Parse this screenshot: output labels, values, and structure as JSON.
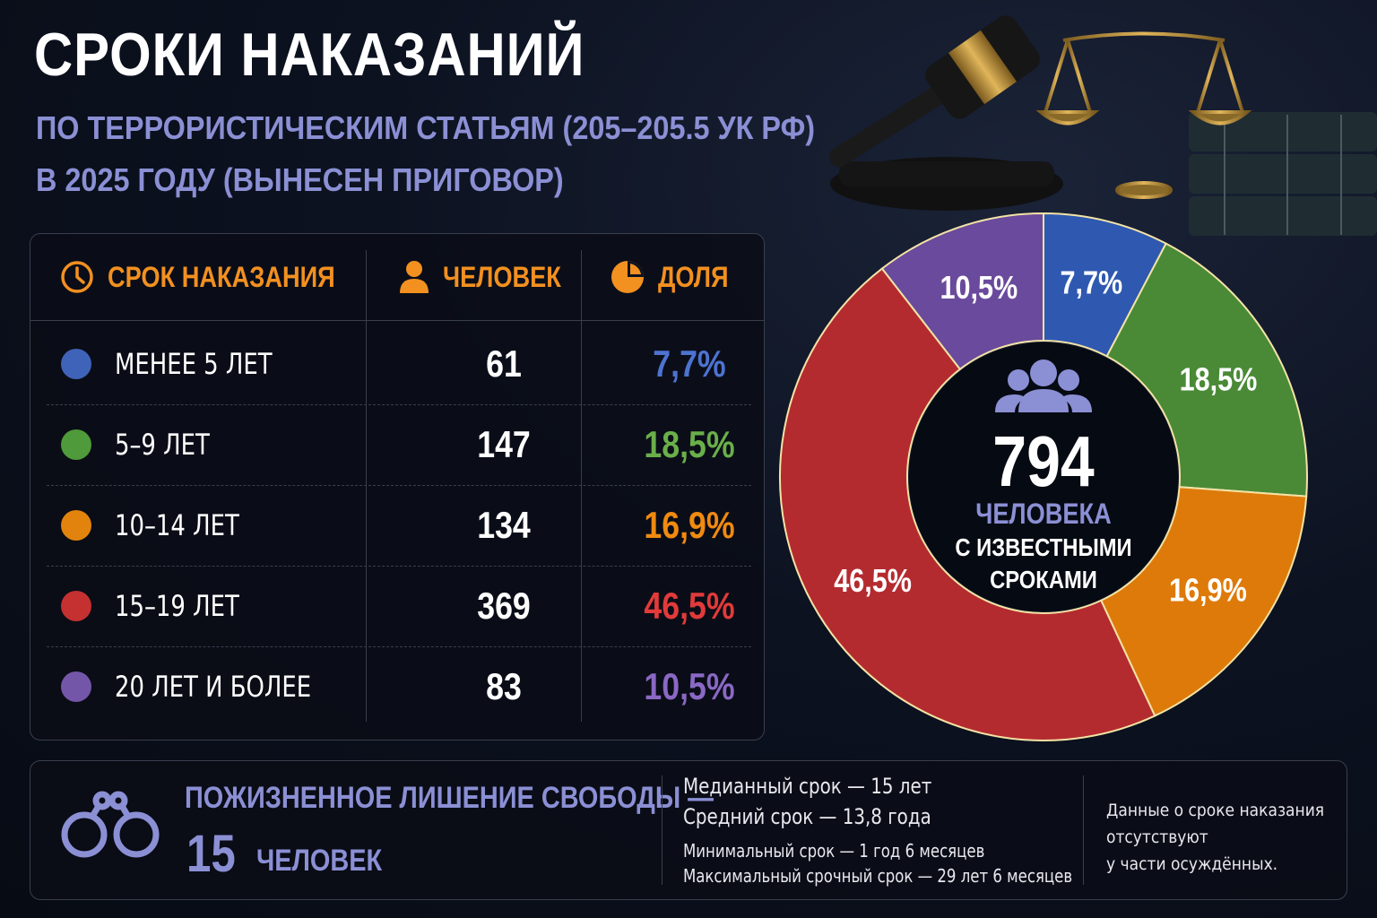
{
  "title": "СРОКИ НАКАЗАНИЙ",
  "subtitle_line1": "ПО ТЕРРОРИСТИЧЕСКИМ СТАТЬЯМ (205–205.5 УК РФ)",
  "subtitle_line2": "В 2025 ГОДУ (ВЫНЕСЕН ПРИГОВОР)",
  "table": {
    "headers": {
      "term": "СРОК НАКАЗАНИЯ",
      "people": "ЧЕЛОВЕК",
      "share": "ДОЛЯ"
    },
    "header_color": "#f29020",
    "rows": [
      {
        "term": "МЕНЕЕ 5 ЛЕТ",
        "count": "61",
        "share": "7,7%",
        "color": "#3f63b8",
        "text_color": "#4d73d1"
      },
      {
        "term": "5–9 ЛЕТ",
        "count": "147",
        "share": "18,5%",
        "color": "#4f9a3a",
        "text_color": "#6aaf4a"
      },
      {
        "term": "10–14 ЛЕТ",
        "count": "134",
        "share": "16,9%",
        "color": "#e2830d",
        "text_color": "#f08a10"
      },
      {
        "term": "15–19 ЛЕТ",
        "count": "369",
        "share": "46,5%",
        "color": "#c53030",
        "text_color": "#e23a3a"
      },
      {
        "term": "20 ЛЕТ И БОЛЕЕ",
        "count": "83",
        "share": "10,5%",
        "color": "#7456a8",
        "text_color": "#8a68c4"
      }
    ]
  },
  "chart_data": {
    "type": "pie",
    "variant": "donut",
    "categories": [
      "МЕНЕЕ 5 ЛЕТ",
      "5–9 ЛЕТ",
      "10–14 ЛЕТ",
      "15–19 ЛЕТ",
      "20 ЛЕТ И БОЛЕЕ"
    ],
    "values": [
      7.7,
      18.5,
      16.9,
      46.5,
      10.5
    ],
    "labels": [
      "7,7%",
      "18,5%",
      "16,9%",
      "46,5%",
      "10,5%"
    ],
    "colors": [
      "#2f58b0",
      "#4a8a37",
      "#de7a0a",
      "#b42b2f",
      "#6a4a9c"
    ],
    "center": {
      "number": "794",
      "line1": "ЧЕЛОВЕКА",
      "line2": "С ИЗВЕСТНЫМИ",
      "line3": "СРОКАМИ"
    }
  },
  "bottom": {
    "life_label": "ПОЖИЗНЕННОЕ ЛИШЕНИЕ СВОБОДЫ —",
    "life_number": "15",
    "life_unit": "ЧЕЛОВЕК",
    "median": "Медианный срок — 15 лет",
    "mean": "Средний срок — 13,8 года",
    "min": "Минимальный срок — 1 год 6 месяцев",
    "max": "Максимальный срочный срок — 29 лет 6 месяцев",
    "note_line1": "Данные о сроке наказания",
    "note_line2": "отсутствуют",
    "note_line3": "у части осуждённых."
  },
  "icons": {
    "term_header": "clock-icon",
    "people_header": "person-icon",
    "share_header": "pie-icon",
    "center": "group-icon",
    "life": "handcuffs-icon",
    "decor": [
      "gavel-icon",
      "scales-icon",
      "books-icon"
    ]
  },
  "accent_color": "#8b8fd4"
}
